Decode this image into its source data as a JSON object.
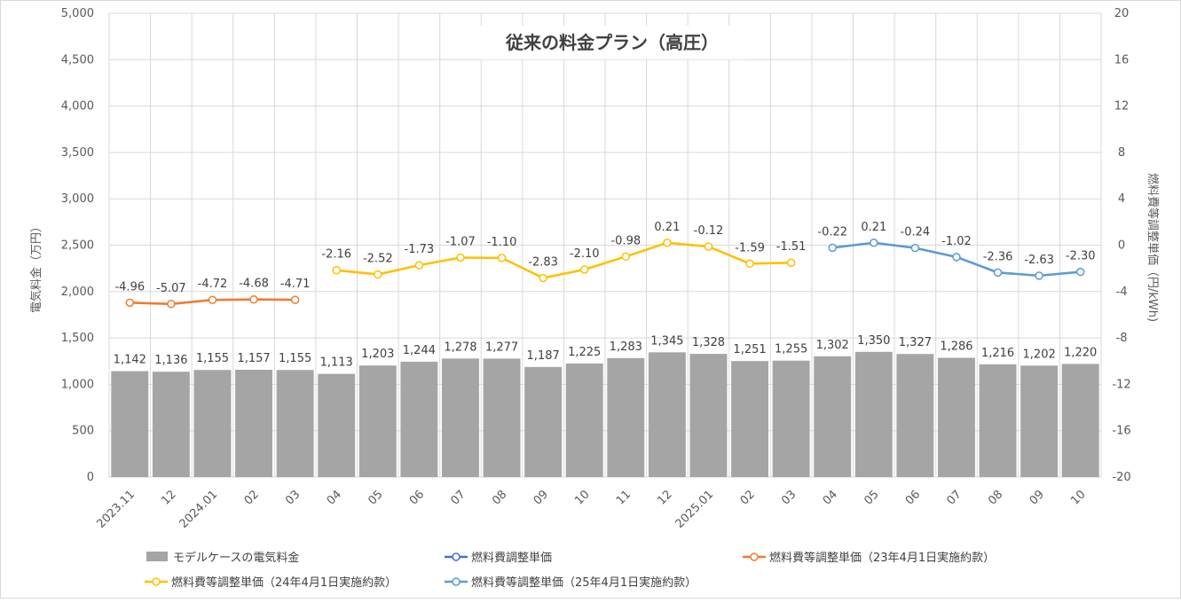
{
  "chart_data": {
    "type": "bar",
    "title": "従来の料金プラン（高圧）",
    "ylabel": "電気料金（万円）",
    "y2label": "燃料費等調整単価（円/kWh)",
    "ylim": [
      0,
      5000
    ],
    "y2lim": [
      -20,
      20
    ],
    "yticks": [
      "0",
      "500",
      "1,000",
      "1,500",
      "2,000",
      "2,500",
      "3,000",
      "3,500",
      "4,000",
      "4,500",
      "5,000"
    ],
    "y2ticks": [
      "-20",
      "-16",
      "-12",
      "-8",
      "-4",
      "0",
      "4",
      "8",
      "12",
      "16",
      "20"
    ],
    "categories": [
      "2023.11",
      "12",
      "2024.01",
      "02",
      "03",
      "04",
      "05",
      "06",
      "07",
      "08",
      "09",
      "10",
      "11",
      "12",
      "2025.01",
      "02",
      "03",
      "04",
      "05",
      "06",
      "07",
      "08",
      "09",
      "10"
    ],
    "bar_series": {
      "name": "モデルケースの電気料金",
      "color": "#a5a5a5",
      "values": [
        1142,
        1136,
        1155,
        1157,
        1155,
        1113,
        1203,
        1244,
        1278,
        1277,
        1187,
        1225,
        1283,
        1345,
        1328,
        1251,
        1255,
        1302,
        1350,
        1327,
        1286,
        1216,
        1202,
        1220
      ],
      "labels": [
        "1,142",
        "1,136",
        "1,155",
        "1,157",
        "1,155",
        "1,113",
        "1,203",
        "1,244",
        "1,278",
        "1,277",
        "1,187",
        "1,225",
        "1,283",
        "1,345",
        "1,328",
        "1,251",
        "1,255",
        "1,302",
        "1,350",
        "1,327",
        "1,286",
        "1,216",
        "1,202",
        "1,220"
      ]
    },
    "line_series": [
      {
        "name": "燃料費調整単価",
        "color": "#4472c4",
        "axis": "right",
        "start": 0,
        "values": [],
        "labels": []
      },
      {
        "name": "燃料費等調整単価（23年4月1日実施約款）",
        "color": "#ed7d31",
        "axis": "right",
        "start": 0,
        "values": [
          -4.96,
          -5.07,
          -4.72,
          -4.68,
          -4.71
        ],
        "labels": [
          "-4.96",
          "-5.07",
          "-4.72",
          "-4.68",
          "-4.71"
        ]
      },
      {
        "name": "燃料費等調整単価（24年4月1日実施約款）",
        "color": "#ffc000",
        "axis": "right",
        "start": 5,
        "values": [
          -2.16,
          -2.52,
          -1.73,
          -1.07,
          -1.1,
          -2.83,
          -2.1,
          -0.98,
          0.21,
          -0.12,
          -1.59,
          -1.51
        ],
        "labels": [
          "-2.16",
          "-2.52",
          "-1.73",
          "-1.07",
          "-1.10",
          "-2.83",
          "-2.10",
          "-0.98",
          "0.21",
          "-0.12",
          "-1.59",
          "-1.51"
        ]
      },
      {
        "name": "燃料費等調整単価（25年4月1日実施約款）",
        "color": "#5b9bd5",
        "axis": "right",
        "start": 17,
        "values": [
          -0.22,
          0.21,
          -0.24,
          -1.02,
          -2.36,
          -2.63,
          -2.3
        ],
        "labels": [
          "-0.22",
          "0.21",
          "-0.24",
          "-1.02",
          "-2.36",
          "-2.63",
          "-2.30"
        ]
      }
    ],
    "grid": true,
    "legend_position": "bottom"
  }
}
